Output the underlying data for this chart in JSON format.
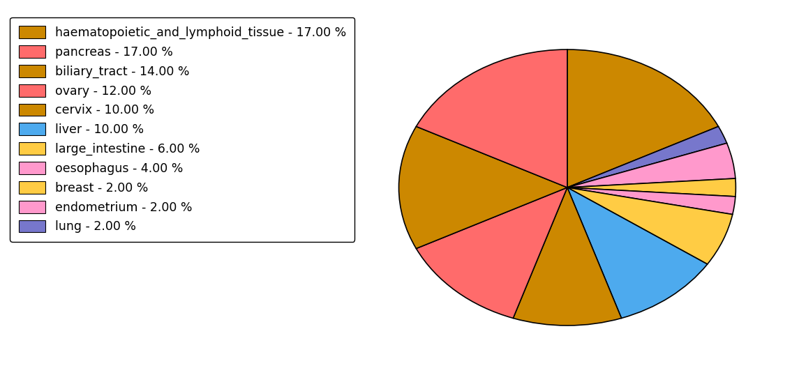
{
  "labels": [
    "haematopoietic_and_lymphoid_tissue - 17.00 %",
    "pancreas - 17.00 %",
    "biliary_tract - 14.00 %",
    "ovary - 12.00 %",
    "cervix - 10.00 %",
    "liver - 10.00 %",
    "large_intestine - 6.00 %",
    "oesophagus - 4.00 %",
    "breast - 2.00 %",
    "endometrium - 2.00 %",
    "lung - 2.00 %"
  ],
  "values": [
    17,
    17,
    14,
    12,
    10,
    10,
    6,
    4,
    2,
    2,
    2
  ],
  "colors": [
    "#CC8800",
    "#FF6B6B",
    "#CC8800",
    "#FF6B6B",
    "#CC8800",
    "#4DAAEE",
    "#FFCC44",
    "#FF99CC",
    "#FFCC44",
    "#FF99CC",
    "#7777CC"
  ],
  "pie_order": [
    0,
    10,
    7,
    8,
    9,
    6,
    5,
    4,
    3,
    2,
    1
  ],
  "startangle": 90,
  "background_color": "#ffffff",
  "legend_fontsize": 12.5,
  "figsize": [
    11.45,
    5.38
  ],
  "dpi": 100
}
